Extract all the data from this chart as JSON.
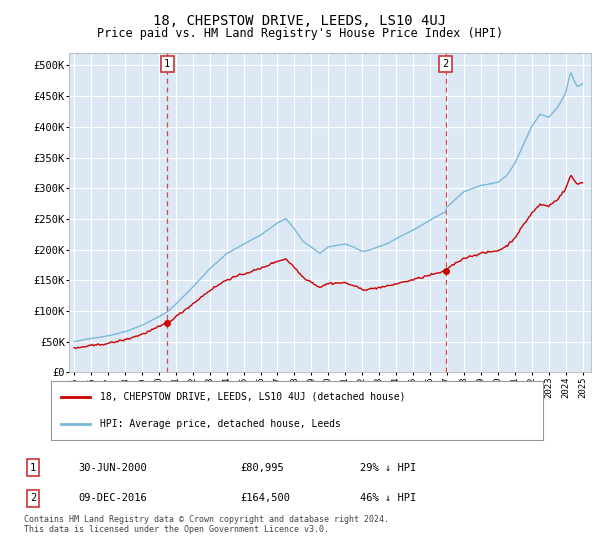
{
  "title": "18, CHEPSTOW DRIVE, LEEDS, LS10 4UJ",
  "subtitle": "Price paid vs. HM Land Registry's House Price Index (HPI)",
  "title_fontsize": 10,
  "subtitle_fontsize": 8.5,
  "ylim": [
    0,
    520000
  ],
  "yticks": [
    0,
    50000,
    100000,
    150000,
    200000,
    250000,
    300000,
    350000,
    400000,
    450000,
    500000
  ],
  "ytick_labels": [
    "£0",
    "£50K",
    "£100K",
    "£150K",
    "£200K",
    "£250K",
    "£300K",
    "£350K",
    "£400K",
    "£450K",
    "£500K"
  ],
  "xlim_start": 1994.7,
  "xlim_end": 2025.5,
  "background_color": "#dce9f5",
  "grid_color": "#ffffff",
  "hpi_color": "#7ab8d9",
  "price_color": "#cc0000",
  "marker1_date_num": 2000.5,
  "marker1_price": 80995,
  "marker1_label": "30-JUN-2000",
  "marker1_price_label": "£80,995",
  "marker1_pct": "29% ↓ HPI",
  "marker2_date_num": 2016.92,
  "marker2_price": 164500,
  "marker2_label": "09-DEC-2016",
  "marker2_price_label": "£164,500",
  "marker2_pct": "46% ↓ HPI",
  "legend_line1": "18, CHEPSTOW DRIVE, LEEDS, LS10 4UJ (detached house)",
  "legend_line2": "HPI: Average price, detached house, Leeds",
  "footnote1": "Contains HM Land Registry data © Crown copyright and database right 2024.",
  "footnote2": "This data is licensed under the Open Government Licence v3.0.",
  "dashed_line_color": "#cc0000",
  "xtick_years": [
    1995,
    1996,
    1997,
    1998,
    1999,
    2000,
    2001,
    2002,
    2003,
    2004,
    2005,
    2006,
    2007,
    2008,
    2009,
    2010,
    2011,
    2012,
    2013,
    2014,
    2015,
    2016,
    2017,
    2018,
    2019,
    2020,
    2021,
    2022,
    2023,
    2024,
    2025
  ]
}
